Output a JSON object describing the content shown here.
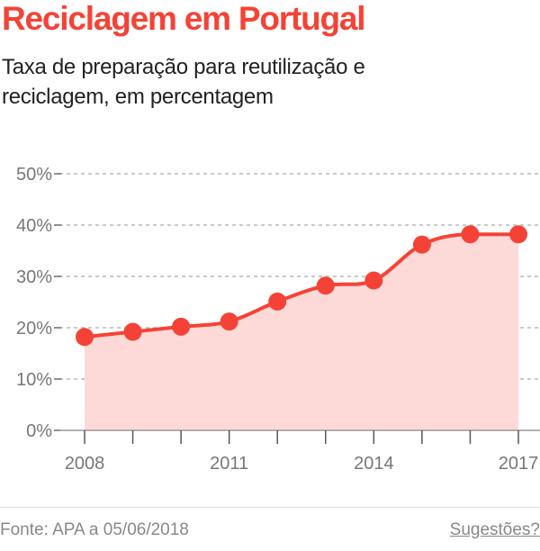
{
  "title": "Reciclagem em Portugal",
  "subtitle": "Taxa de preparação para reutilização e reciclagem, em percentagem",
  "footer": {
    "source": "Fonte: APA a 05/06/2018",
    "suggestions_link": "Sugestões?"
  },
  "colors": {
    "accent": "#f44336",
    "area": "#fdd9d7",
    "grid": "#aaaaaa"
  },
  "chart_data": {
    "type": "area",
    "x": [
      2008,
      2009,
      2010,
      2011,
      2012,
      2013,
      2014,
      2015,
      2016,
      2017
    ],
    "series": [
      {
        "values": [
          18.2,
          19.2,
          20.2,
          21.2,
          25.1,
          28.2,
          29.2,
          36.2,
          38.2,
          38.2
        ]
      }
    ],
    "x_tick_labels": [
      "2008",
      "2011",
      "2014",
      "2017"
    ],
    "y_tick_labels": [
      "0%",
      "10%",
      "20%",
      "30%",
      "40%",
      "50%"
    ],
    "ylim": [
      0,
      50
    ],
    "xlim": [
      2008,
      2017
    ],
    "grid": true,
    "markers": true
  }
}
